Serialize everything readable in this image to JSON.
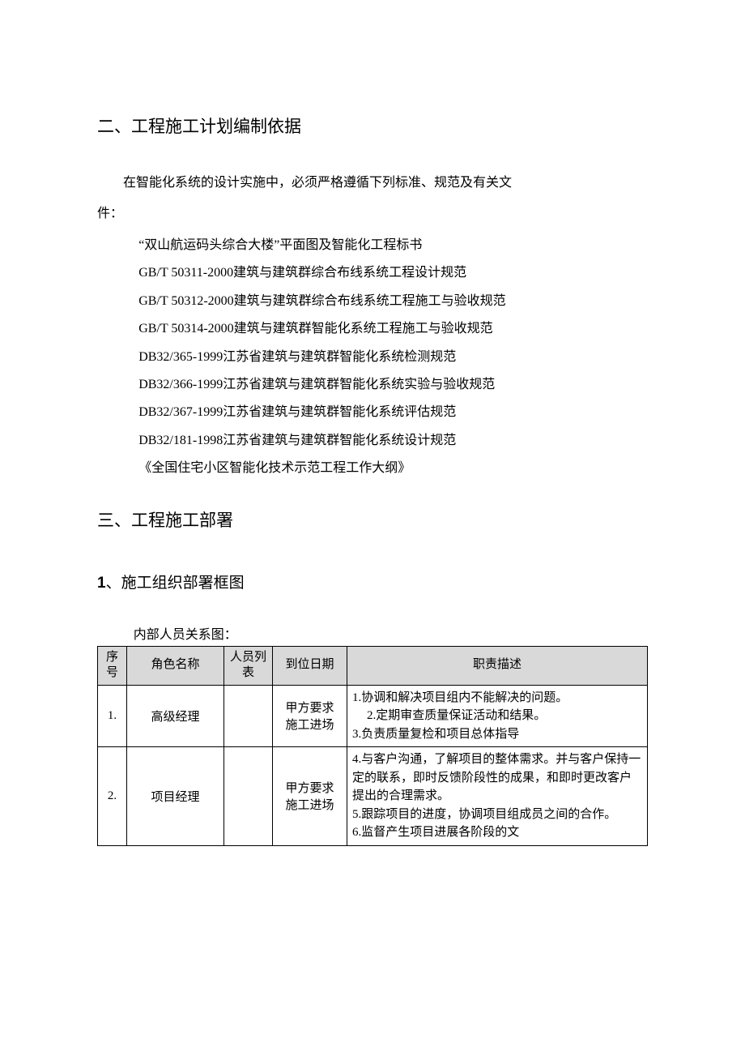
{
  "section2": {
    "title": "二、工程施工计划编制依据",
    "intro_l1": "在智能化系统的设计实施中，必须严格遵循下列标准、规范及有关文",
    "intro_l2": "件：",
    "items": [
      "“双山航运码头综合大楼”平面图及智能化工程标书",
      "GB/T 50311-2000建筑与建筑群综合布线系统工程设计规范",
      "GB/T 50312-2000建筑与建筑群综合布线系统工程施工与验收规范",
      "GB/T 50314-2000建筑与建筑群智能化系统工程施工与验收规范",
      "DB32/365-1999江苏省建筑与建筑群智能化系统检测规范",
      "DB32/366-1999江苏省建筑与建筑群智能化系统实验与验收规范",
      "DB32/367-1999江苏省建筑与建筑群智能化系统评估规范",
      "DB32/181-1998江苏省建筑与建筑群智能化系统设计规范",
      "《全国住宅小区智能化技术示范工程工作大纲》"
    ]
  },
  "section3": {
    "title": "三、工程施工部署",
    "sub1_num": "1",
    "sub1_title": "、施工组织部署框图",
    "subhead": "内部人员关系图：",
    "table": {
      "headers": {
        "seq": "序号",
        "role": "角色名称",
        "people": "人员列表",
        "date": "到位日期",
        "desc": "职责描述"
      },
      "rows": [
        {
          "seq": "1.",
          "role": "高级经理",
          "people": "",
          "date_l1": "甲方要求",
          "date_l2": "施工进场",
          "desc": [
            {
              "n": "1.",
              "t": "协调和解决项目组内不能解决的问题。"
            },
            {
              "n": "2.",
              "t": "定期审查质量保证活动和结果。",
              "indent": true
            },
            {
              "n": "3.",
              "t": "负责质量复检和项目总体指导"
            }
          ]
        },
        {
          "seq": "2.",
          "role": "项目经理",
          "people": "",
          "date_l1": "甲方要求",
          "date_l2": "施工进场",
          "desc": [
            {
              "n": "4.",
              "t": "与客户沟通，了解项目的整体需求。并与客户保持一定的联系，即时反馈阶段性的成果，和即时更改客户提出的合理需求。"
            },
            {
              "n": "5.",
              "t": "跟踪项目的进度，协调项目组成员之间的合作。"
            },
            {
              "n": "6.",
              "t": "监督产生项目进展各阶段的文"
            }
          ]
        }
      ]
    }
  },
  "colors": {
    "header_bg": "#d9d9d9",
    "border": "#000000",
    "text": "#000000",
    "background": "#ffffff"
  }
}
